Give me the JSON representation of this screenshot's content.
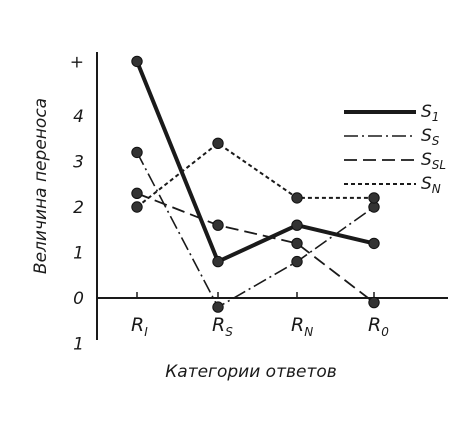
{
  "chart_data": {
    "type": "line",
    "xlabel": "Категории ответов",
    "ylabel": "Величина переноса",
    "categories": [
      {
        "label": "R",
        "sub": "I"
      },
      {
        "label": "R",
        "sub": "S"
      },
      {
        "label": "R",
        "sub": "N"
      },
      {
        "label": "R",
        "sub": "0"
      }
    ],
    "y_ticks": [
      {
        "value": -1,
        "label": "1"
      },
      {
        "value": 0,
        "label": "0"
      },
      {
        "value": 1,
        "label": "1"
      },
      {
        "value": 2,
        "label": "2"
      },
      {
        "value": 3,
        "label": "3"
      },
      {
        "value": 4,
        "label": "4"
      },
      {
        "value": 5.2,
        "label": "+"
      }
    ],
    "ylim": [
      -1.2,
      6.0
    ],
    "grid": false,
    "legend_position": "top-right",
    "series": [
      {
        "name": "S",
        "name_sub": "1",
        "style": "solid",
        "values": [
          5.2,
          0.8,
          1.6,
          1.2
        ]
      },
      {
        "name": "S",
        "name_sub": "S",
        "style": "dash-dot",
        "values": [
          3.2,
          -0.2,
          0.8,
          2.0
        ]
      },
      {
        "name": "S",
        "name_sub": "SL",
        "style": "dashed",
        "values": [
          2.3,
          1.6,
          1.2,
          -0.1
        ]
      },
      {
        "name": "S",
        "name_sub": "N",
        "style": "dotted",
        "values": [
          2.0,
          3.4,
          2.2,
          2.2
        ]
      }
    ]
  }
}
